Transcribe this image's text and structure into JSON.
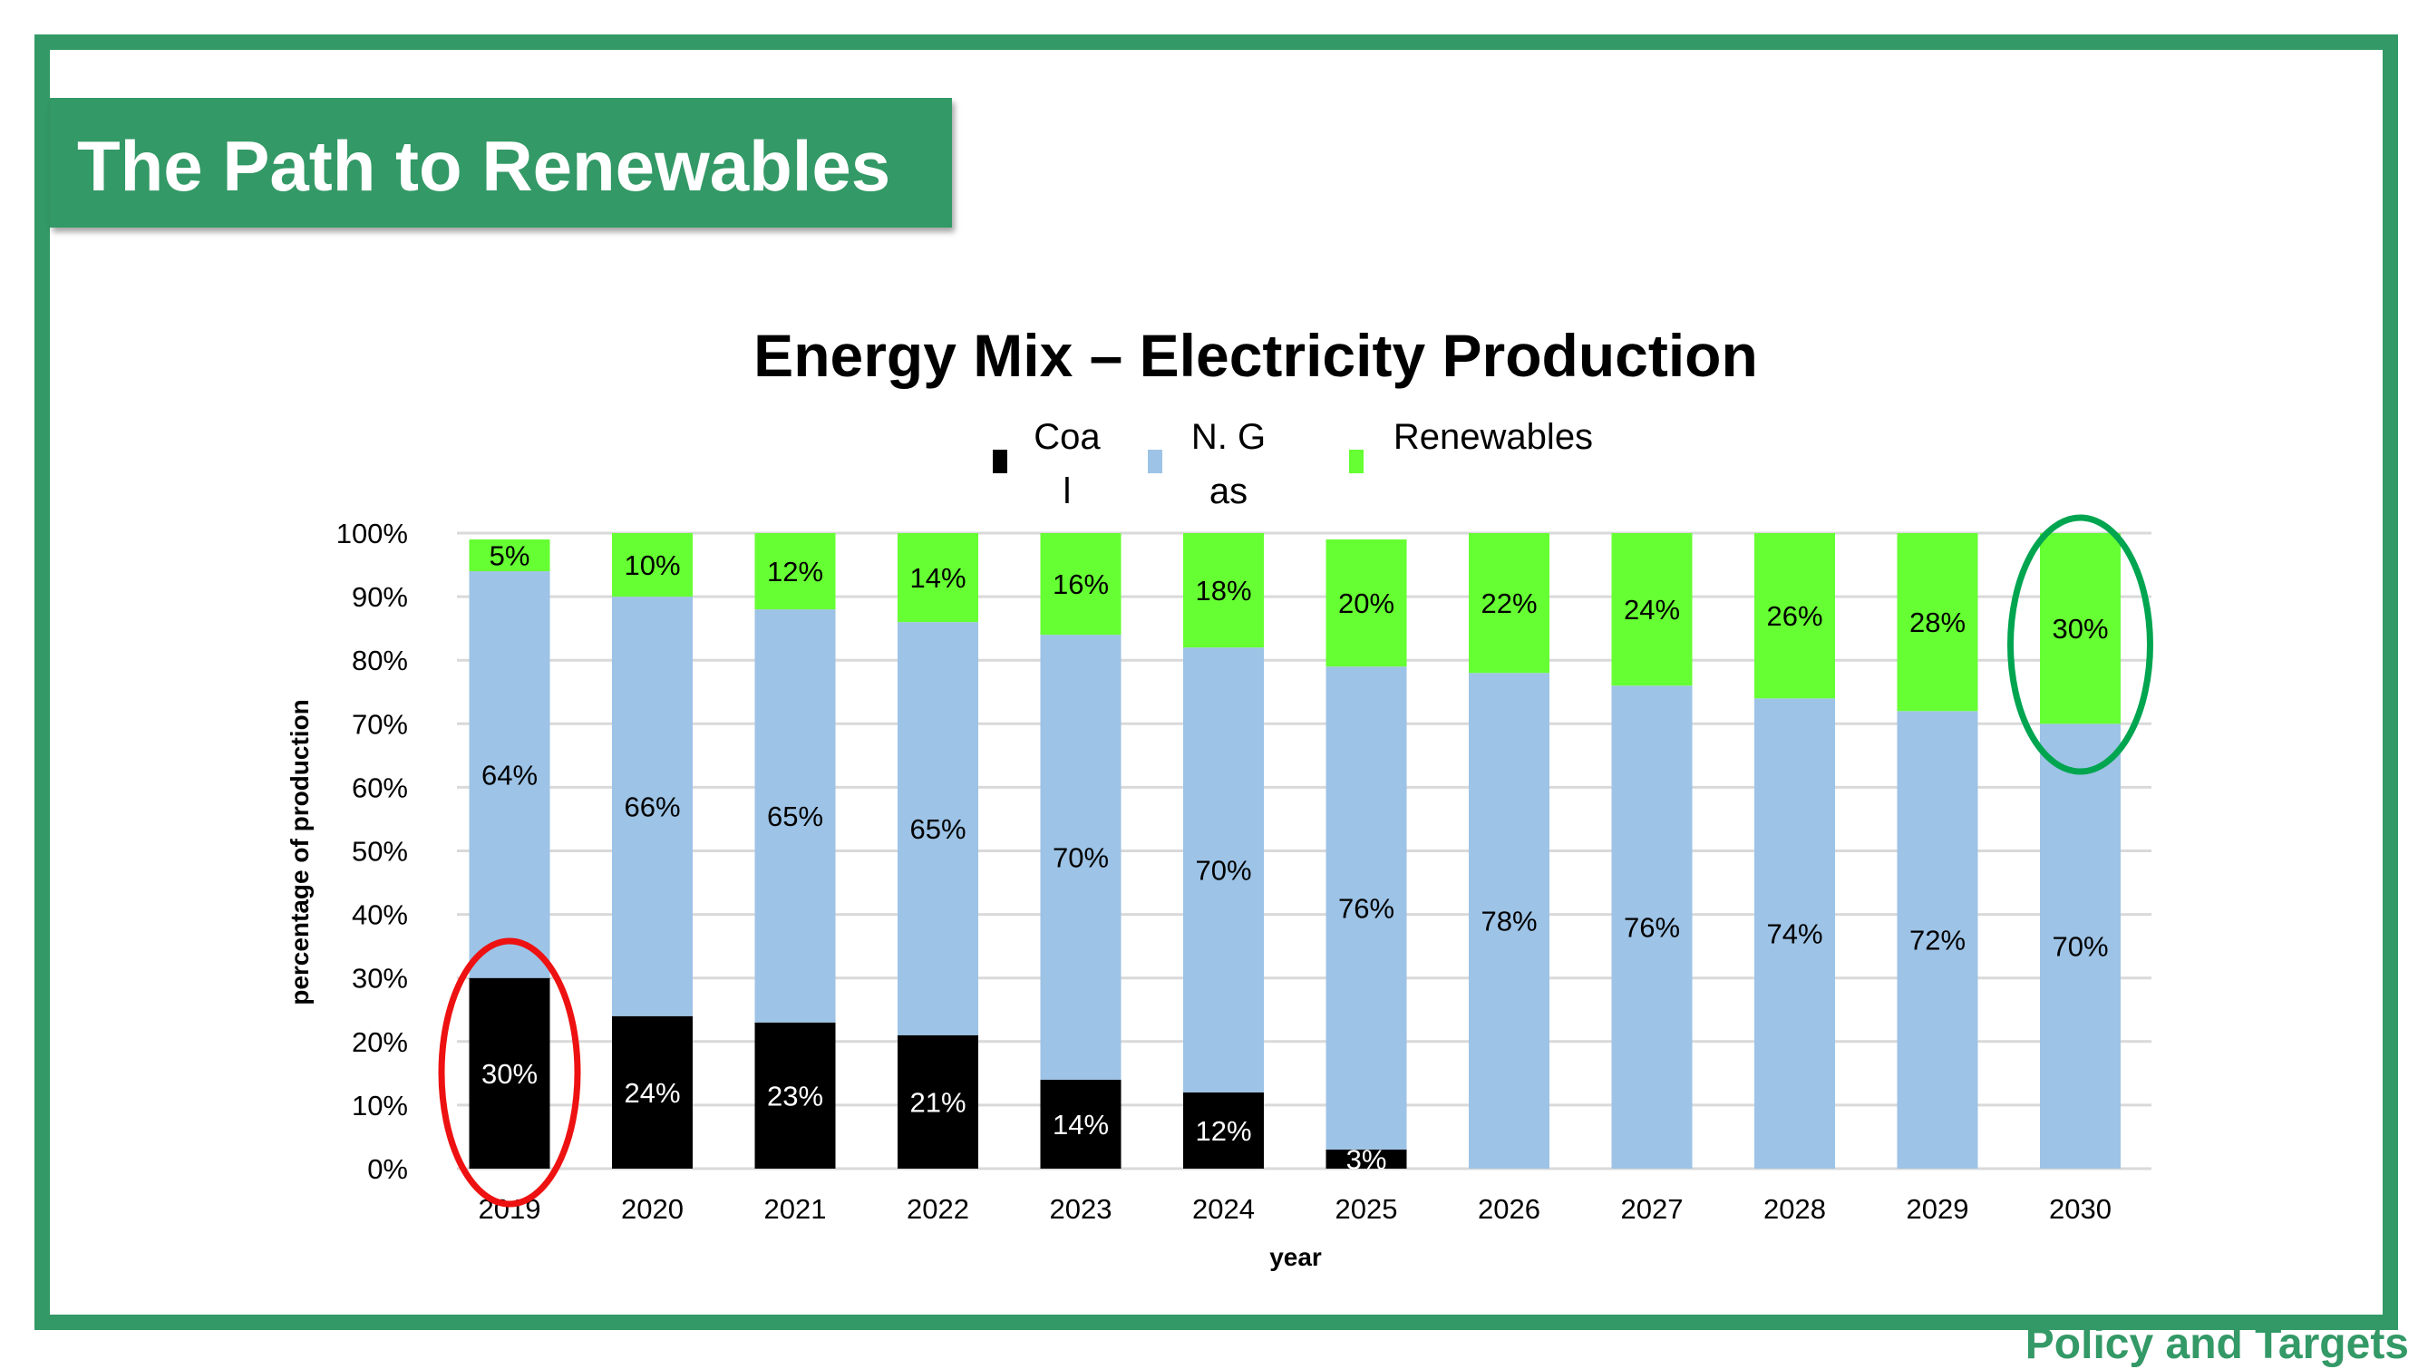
{
  "slide": {
    "title": "The Path to Renewables",
    "footer": "Policy and Targets",
    "frame_color": "#339966"
  },
  "chart_data": {
    "type": "bar",
    "stacked": true,
    "title": "Energy Mix – Electricity Production",
    "xlabel": "year",
    "ylabel": "percentage of production",
    "ylim": [
      0,
      100
    ],
    "yticks": [
      "0%",
      "10%",
      "20%",
      "30%",
      "40%",
      "50%",
      "60%",
      "70%",
      "80%",
      "90%",
      "100%"
    ],
    "grid": true,
    "legend_position": "top",
    "categories": [
      "2019",
      "2020",
      "2021",
      "2022",
      "2023",
      "2024",
      "2025",
      "2026",
      "2027",
      "2028",
      "2029",
      "2030"
    ],
    "series": [
      {
        "name": "Coal",
        "color": "#000000",
        "label_color": "#ffffff",
        "values": [
          30,
          24,
          23,
          21,
          14,
          12,
          3,
          0,
          0,
          0,
          0,
          0
        ],
        "labels": [
          "30%",
          "24%",
          "23%",
          "21%",
          "14%",
          "12%",
          "3%",
          "",
          "",
          "",
          "",
          ""
        ]
      },
      {
        "name": "N. Gas",
        "color": "#9DC3E6",
        "label_color": "#000000",
        "values": [
          64,
          66,
          65,
          65,
          70,
          70,
          76,
          78,
          76,
          74,
          72,
          70
        ],
        "labels": [
          "64%",
          "66%",
          "65%",
          "65%",
          "70%",
          "70%",
          "76%",
          "78%",
          "76%",
          "74%",
          "72%",
          "70%"
        ]
      },
      {
        "name": "Renewables",
        "color": "#66FF33",
        "label_color": "#000000",
        "values": [
          5,
          10,
          12,
          14,
          16,
          18,
          20,
          22,
          24,
          26,
          28,
          30
        ],
        "labels": [
          "5%",
          "10%",
          "12%",
          "14%",
          "16%",
          "18%",
          "20%",
          "22%",
          "24%",
          "26%",
          "28%",
          "30%"
        ]
      }
    ],
    "annotations": [
      {
        "type": "ellipse",
        "category": "2019",
        "series": "Coal",
        "color": "#EE1111"
      },
      {
        "type": "ellipse",
        "category": "2030",
        "series": "Renewables",
        "color": "#00A550"
      }
    ]
  }
}
